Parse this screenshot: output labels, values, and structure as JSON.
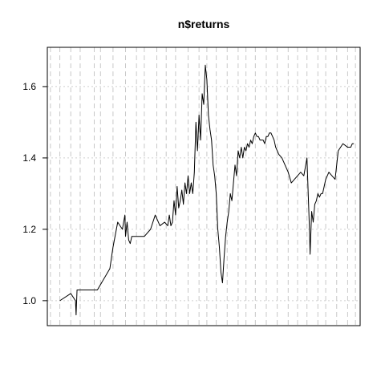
{
  "chart_data": {
    "type": "line",
    "title": "n$returns",
    "xlabel": "",
    "ylabel": "",
    "ylim": [
      0.93,
      1.71
    ],
    "yticks": [
      1.0,
      1.2,
      1.4,
      1.6
    ],
    "ytick_labels": [
      "1.0",
      "1.2",
      "1.4",
      "1.6"
    ],
    "grid": true,
    "x_grid_positions": [
      0.01,
      0.04,
      0.075,
      0.105,
      0.15,
      0.17,
      0.21,
      0.25,
      0.285,
      0.31,
      0.35,
      0.38,
      0.41,
      0.45,
      0.485,
      0.51,
      0.54,
      0.575,
      0.61,
      0.635,
      0.665,
      0.7,
      0.735,
      0.77,
      0.8,
      0.83,
      0.865,
      0.89,
      0.925,
      0.96,
      0.985
    ],
    "series": [
      {
        "x": [
          0.04,
          0.075,
          0.09,
          0.092,
          0.095,
          0.105,
          0.16,
          0.2,
          0.21,
          0.225,
          0.24,
          0.248,
          0.25,
          0.255,
          0.26,
          0.265,
          0.27,
          0.29,
          0.31,
          0.33,
          0.345,
          0.36,
          0.375,
          0.385,
          0.39,
          0.395,
          0.4,
          0.405,
          0.41,
          0.415,
          0.42,
          0.425,
          0.43,
          0.435,
          0.44,
          0.445,
          0.45,
          0.455,
          0.46,
          0.465,
          0.47,
          0.475,
          0.48,
          0.485,
          0.49,
          0.495,
          0.5,
          0.505,
          0.51,
          0.515,
          0.52,
          0.525,
          0.53,
          0.535,
          0.54,
          0.545,
          0.55,
          0.555,
          0.56,
          0.565,
          0.57,
          0.575,
          0.58,
          0.585,
          0.59,
          0.595,
          0.6,
          0.605,
          0.61,
          0.615,
          0.62,
          0.625,
          0.63,
          0.635,
          0.64,
          0.645,
          0.65,
          0.655,
          0.66,
          0.665,
          0.67,
          0.675,
          0.68,
          0.685,
          0.69,
          0.695,
          0.7,
          0.705,
          0.71,
          0.715,
          0.72,
          0.725,
          0.73,
          0.74,
          0.75,
          0.76,
          0.77,
          0.78,
          0.79,
          0.81,
          0.82,
          0.83,
          0.838,
          0.84,
          0.845,
          0.85,
          0.855,
          0.86,
          0.865,
          0.87,
          0.875,
          0.88,
          0.885,
          0.89,
          0.895,
          0.9,
          0.91,
          0.92,
          0.93,
          0.945,
          0.96,
          0.97,
          0.975,
          0.98
        ],
        "values": [
          1.0,
          1.02,
          1.0,
          0.96,
          1.03,
          1.03,
          1.03,
          1.09,
          1.15,
          1.22,
          1.2,
          1.24,
          1.18,
          1.22,
          1.17,
          1.16,
          1.18,
          1.18,
          1.18,
          1.2,
          1.24,
          1.21,
          1.22,
          1.21,
          1.24,
          1.21,
          1.22,
          1.28,
          1.24,
          1.32,
          1.26,
          1.28,
          1.31,
          1.27,
          1.33,
          1.3,
          1.35,
          1.3,
          1.33,
          1.3,
          1.36,
          1.5,
          1.42,
          1.52,
          1.45,
          1.58,
          1.55,
          1.66,
          1.62,
          1.52,
          1.48,
          1.45,
          1.38,
          1.35,
          1.3,
          1.2,
          1.15,
          1.08,
          1.05,
          1.12,
          1.18,
          1.22,
          1.25,
          1.3,
          1.28,
          1.33,
          1.38,
          1.35,
          1.42,
          1.4,
          1.43,
          1.4,
          1.43,
          1.42,
          1.44,
          1.43,
          1.45,
          1.44,
          1.46,
          1.47,
          1.46,
          1.46,
          1.45,
          1.45,
          1.45,
          1.44,
          1.46,
          1.46,
          1.47,
          1.47,
          1.46,
          1.45,
          1.43,
          1.41,
          1.4,
          1.38,
          1.36,
          1.33,
          1.34,
          1.36,
          1.35,
          1.4,
          1.2,
          1.13,
          1.25,
          1.22,
          1.27,
          1.28,
          1.3,
          1.29,
          1.3,
          1.3,
          1.32,
          1.34,
          1.35,
          1.36,
          1.35,
          1.34,
          1.42,
          1.44,
          1.43,
          1.43,
          1.44,
          1.44
        ]
      }
    ]
  }
}
